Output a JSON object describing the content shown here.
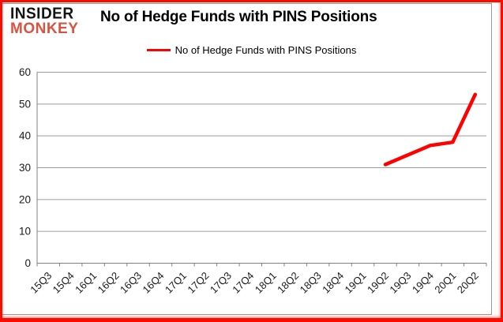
{
  "logo": {
    "line1": "INSIDER",
    "line2": "MONKEY"
  },
  "header": {
    "title": "No of Hedge Funds with PINS Positions"
  },
  "legend": {
    "label": "No of Hedge Funds with PINS Positions"
  },
  "colors": {
    "frame_border": "#f90d00",
    "chart_border": "#9a9a9a",
    "logo_accent": "#d85340",
    "line": "#ff0000",
    "gridline": "#9b9b9b",
    "axis": "#808080",
    "tick_text": "#1a1a1a"
  },
  "chart_data": {
    "type": "line",
    "title": "No of Hedge Funds with PINS Positions",
    "xlabel": "",
    "ylabel": "",
    "categories": [
      "15Q3",
      "15Q4",
      "16Q1",
      "16Q2",
      "16Q3",
      "16Q4",
      "17Q1",
      "17Q2",
      "17Q3",
      "17Q4",
      "18Q1",
      "18Q2",
      "18Q3",
      "18Q4",
      "19Q1",
      "19Q2",
      "19Q3",
      "19Q4",
      "20Q1",
      "20Q2"
    ],
    "series": [
      {
        "name": "No of Hedge Funds with PINS Positions",
        "color": "#ff0000",
        "values": [
          null,
          null,
          null,
          null,
          null,
          null,
          null,
          null,
          null,
          null,
          null,
          null,
          null,
          null,
          null,
          31,
          34,
          37,
          38,
          53
        ]
      }
    ],
    "ylim": [
      0,
      60
    ],
    "yticks": [
      0,
      10,
      20,
      30,
      40,
      50,
      60
    ],
    "grid": true,
    "legend_position": "top"
  }
}
